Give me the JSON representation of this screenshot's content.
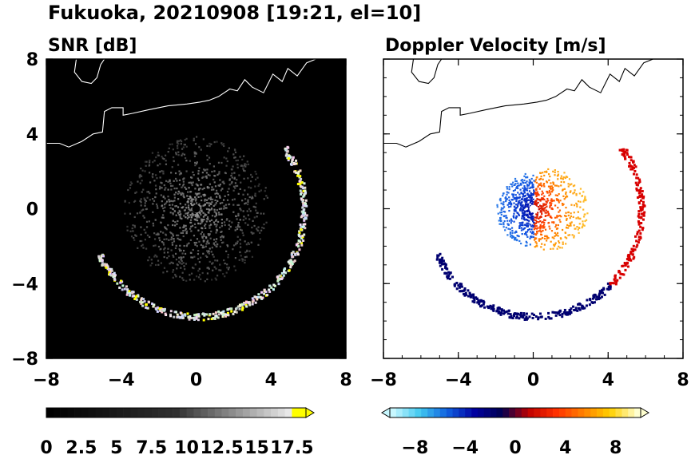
{
  "figure": {
    "title": "Fukuoka, 20210908 [19:21, el=10]"
  },
  "chart_data": [
    {
      "type": "heatmap",
      "title": "SNR [dB]",
      "xlim": [
        -8,
        8
      ],
      "ylim": [
        -8,
        8
      ],
      "x_ticks": [
        -8,
        -4,
        0,
        4,
        8
      ],
      "y_ticks": [
        8,
        4,
        0,
        -4,
        -8
      ],
      "x_tick_labels": [
        "−8",
        "−4",
        "0",
        "4",
        "8"
      ],
      "y_tick_labels": [
        "8",
        "4",
        "0",
        "−4",
        "−8"
      ],
      "background": "#000000",
      "colorbar": {
        "min": 0,
        "max": 18.5,
        "extend": "max",
        "tick_values": [
          0,
          2.5,
          5,
          7.5,
          10,
          12.5,
          15,
          17.5
        ],
        "tick_labels": [
          "0",
          "2.5",
          "5",
          "7.5",
          "10",
          "12.5",
          "15",
          "17.5"
        ],
        "colors": [
          "#000000",
          "#ffffff",
          "#ffff00"
        ]
      }
    },
    {
      "type": "heatmap",
      "title": "Doppler Velocity [m/s]",
      "xlim": [
        -8,
        8
      ],
      "ylim": [
        -8,
        8
      ],
      "x_ticks": [
        -8,
        -4,
        0,
        4,
        8
      ],
      "y_ticks": [
        8,
        4,
        0,
        -4,
        -8
      ],
      "x_tick_labels": [
        "−8",
        "−4",
        "0",
        "4",
        "8"
      ],
      "y_tick_labels": [
        "8",
        "4",
        "0",
        "−4",
        "−8"
      ],
      "background": "#ffffff",
      "colorbar": {
        "min": -10,
        "max": 10,
        "extend": "both",
        "tick_values": [
          -8,
          -4,
          0,
          4,
          8
        ],
        "tick_labels": [
          "−8",
          "−4",
          "0",
          "4",
          "8"
        ],
        "colors": [
          "#c8f8ff",
          "#40c8f0",
          "#1060e0",
          "#0000a0",
          "#000050",
          "#c00000",
          "#ff3000",
          "#ff8000",
          "#ffd000",
          "#ffffd0"
        ]
      }
    }
  ]
}
